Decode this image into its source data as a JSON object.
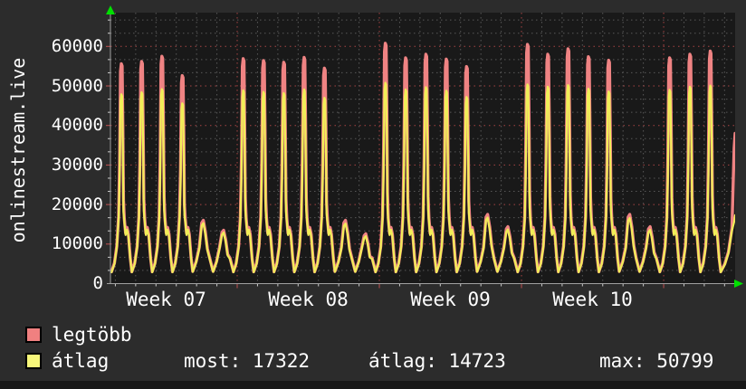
{
  "window": {
    "bg": "#2c2c2c",
    "plot_bg": "#191919"
  },
  "chart_data": {
    "type": "line",
    "title": "onlinestream.live",
    "ylabel": "onlinestream.live",
    "x_tick_labels": [
      "Week 07",
      "Week 08",
      "Week 09",
      "Week 10"
    ],
    "y_ticks": [
      0,
      10000,
      20000,
      30000,
      40000,
      50000,
      60000
    ],
    "ylim": [
      0,
      68000
    ],
    "grid": {
      "minor_color": "#585858",
      "major_color": "#a84444",
      "days_per_week": 7
    },
    "series_names": [
      "legtöbb",
      "átlag"
    ],
    "series_colors": {
      "legtobb": "#ef8383",
      "atlag": "#f1ee58"
    },
    "days": [
      {
        "day": 1,
        "type": "big",
        "legtobb": 55600,
        "atlag": 47900
      },
      {
        "day": 2,
        "type": "big",
        "legtobb": 56200,
        "atlag": 48400
      },
      {
        "day": 3,
        "type": "big",
        "legtobb": 57500,
        "atlag": 49200
      },
      {
        "day": 4,
        "type": "big",
        "legtobb": 52600,
        "atlag": 45600
      },
      {
        "day": 5,
        "type": "small",
        "legtobb": 16000,
        "atlag": 15300
      },
      {
        "day": 6,
        "type": "small",
        "legtobb": 13500,
        "atlag": 12900
      },
      {
        "day": 7,
        "type": "big",
        "legtobb": 56900,
        "atlag": 48900
      },
      {
        "day": 8,
        "type": "big",
        "legtobb": 56400,
        "atlag": 48500
      },
      {
        "day": 9,
        "type": "big",
        "legtobb": 56000,
        "atlag": 48200
      },
      {
        "day": 10,
        "type": "big",
        "legtobb": 57200,
        "atlag": 49100
      },
      {
        "day": 11,
        "type": "big",
        "legtobb": 54500,
        "atlag": 47000
      },
      {
        "day": 12,
        "type": "small",
        "legtobb": 16000,
        "atlag": 15200
      },
      {
        "day": 13,
        "type": "small",
        "legtobb": 12600,
        "atlag": 12000
      },
      {
        "day": 14,
        "type": "big",
        "legtobb": 60800,
        "atlag": 50799
      },
      {
        "day": 15,
        "type": "big",
        "legtobb": 57100,
        "atlag": 49100
      },
      {
        "day": 16,
        "type": "big",
        "legtobb": 58000,
        "atlag": 49700
      },
      {
        "day": 17,
        "type": "big",
        "legtobb": 56800,
        "atlag": 48800
      },
      {
        "day": 18,
        "type": "big",
        "legtobb": 54900,
        "atlag": 47200
      },
      {
        "day": 19,
        "type": "small",
        "legtobb": 17500,
        "atlag": 16700
      },
      {
        "day": 20,
        "type": "small",
        "legtobb": 14400,
        "atlag": 13700
      },
      {
        "day": 21,
        "type": "big",
        "legtobb": 60500,
        "atlag": 50400
      },
      {
        "day": 22,
        "type": "big",
        "legtobb": 58000,
        "atlag": 49800
      },
      {
        "day": 23,
        "type": "big",
        "legtobb": 59400,
        "atlag": 50200
      },
      {
        "day": 24,
        "type": "big",
        "legtobb": 57400,
        "atlag": 49300
      },
      {
        "day": 25,
        "type": "big",
        "legtobb": 56500,
        "atlag": 48600
      },
      {
        "day": 26,
        "type": "small",
        "legtobb": 17500,
        "atlag": 16600
      },
      {
        "day": 27,
        "type": "small",
        "legtobb": 14400,
        "atlag": 13600
      },
      {
        "day": 28,
        "type": "big",
        "legtobb": 57100,
        "atlag": 49000
      },
      {
        "day": 29,
        "type": "big",
        "legtobb": 58000,
        "atlag": 49800
      },
      {
        "day": 30,
        "type": "big",
        "legtobb": 58800,
        "atlag": 50100
      },
      {
        "day": 31,
        "type": "partial",
        "legtobb": 38000,
        "atlag": 17322
      }
    ],
    "legend_position": "bottom-left"
  },
  "legend": {
    "items": [
      {
        "label": "legtöbb",
        "color": "#f08080"
      },
      {
        "label": "átlag",
        "color": "#f8f87a"
      }
    ],
    "stats": [
      {
        "text": "most: 17322"
      },
      {
        "text": "átlag: 14723"
      },
      {
        "text": "max: 50799"
      }
    ]
  }
}
